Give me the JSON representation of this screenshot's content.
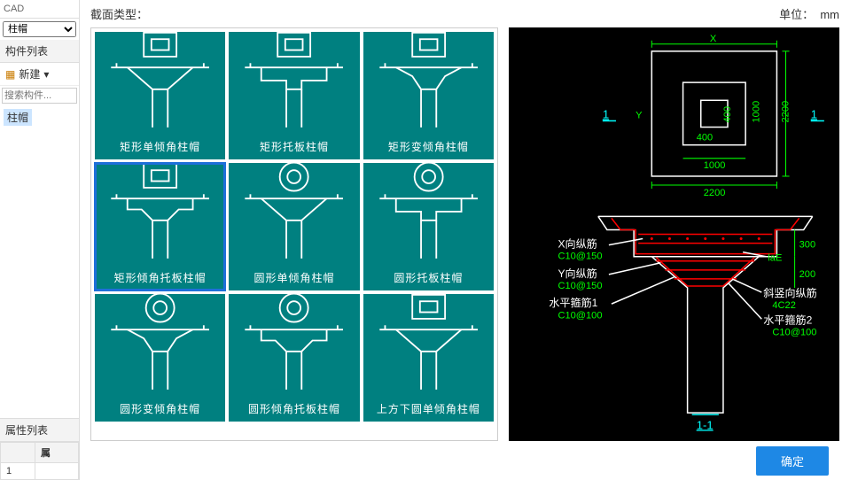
{
  "left": {
    "cad_label": "CAD",
    "dropdown_value": "柱帽",
    "component_list_title": "构件列表",
    "new_button_label": "新建",
    "search_placeholder": "搜索构件...",
    "tree_item": "柱帽",
    "property_list_title": "属性列表",
    "prop_header": "属",
    "prop_row_num": "1"
  },
  "main": {
    "section_type_label": "截面类型：",
    "unit_label": "单位：",
    "unit_value": "mm",
    "ok_button": "确定",
    "grid_items": [
      {
        "label": "矩形单倾角柱帽",
        "shape": "rect-single-bevel",
        "selected": false
      },
      {
        "label": "矩形托板柱帽",
        "shape": "rect-drop",
        "selected": false
      },
      {
        "label": "矩形变倾角柱帽",
        "shape": "rect-var-bevel",
        "selected": false
      },
      {
        "label": "矩形倾角托板柱帽",
        "shape": "rect-bevel-drop",
        "selected": true
      },
      {
        "label": "圆形单倾角柱帽",
        "shape": "circ-single-bevel",
        "selected": false
      },
      {
        "label": "圆形托板柱帽",
        "shape": "circ-drop",
        "selected": false
      },
      {
        "label": "圆形变倾角柱帽",
        "shape": "circ-var-bevel",
        "selected": false
      },
      {
        "label": "圆形倾角托板柱帽",
        "shape": "circ-bevel-drop",
        "selected": false
      },
      {
        "label": "上方下圆单倾角柱帽",
        "shape": "rect-circ-bevel",
        "selected": false
      }
    ],
    "selected_index": 3
  },
  "preview": {
    "plan": {
      "X_label": "X",
      "Y_label": "Y",
      "outer_w": "2200",
      "outer_h": "2200",
      "inner_w": "1000",
      "inner_h": "1000",
      "core_w": "400",
      "core_h": "400",
      "section_mark": "1"
    },
    "elev": {
      "drop_h": "300",
      "bevel_h": "200",
      "section_label": "1-1",
      "annotations": [
        {
          "label": "X向纵筋",
          "value": "C10@150"
        },
        {
          "label": "Y向纵筋",
          "value": "C10@150"
        },
        {
          "label": "水平箍筋1",
          "value": "C10@100"
        }
      ],
      "right_annotations": [
        {
          "label": "laE",
          "value": ""
        },
        {
          "label": "斜竖向纵筋",
          "value": "4C22"
        },
        {
          "label": "水平箍筋2",
          "value": "C10@100"
        }
      ]
    },
    "colors": {
      "bg": "#000000",
      "struct": "#ffffff",
      "dim": "#00ff00",
      "section": "#00ffff",
      "rebar": "#ff0000"
    }
  }
}
